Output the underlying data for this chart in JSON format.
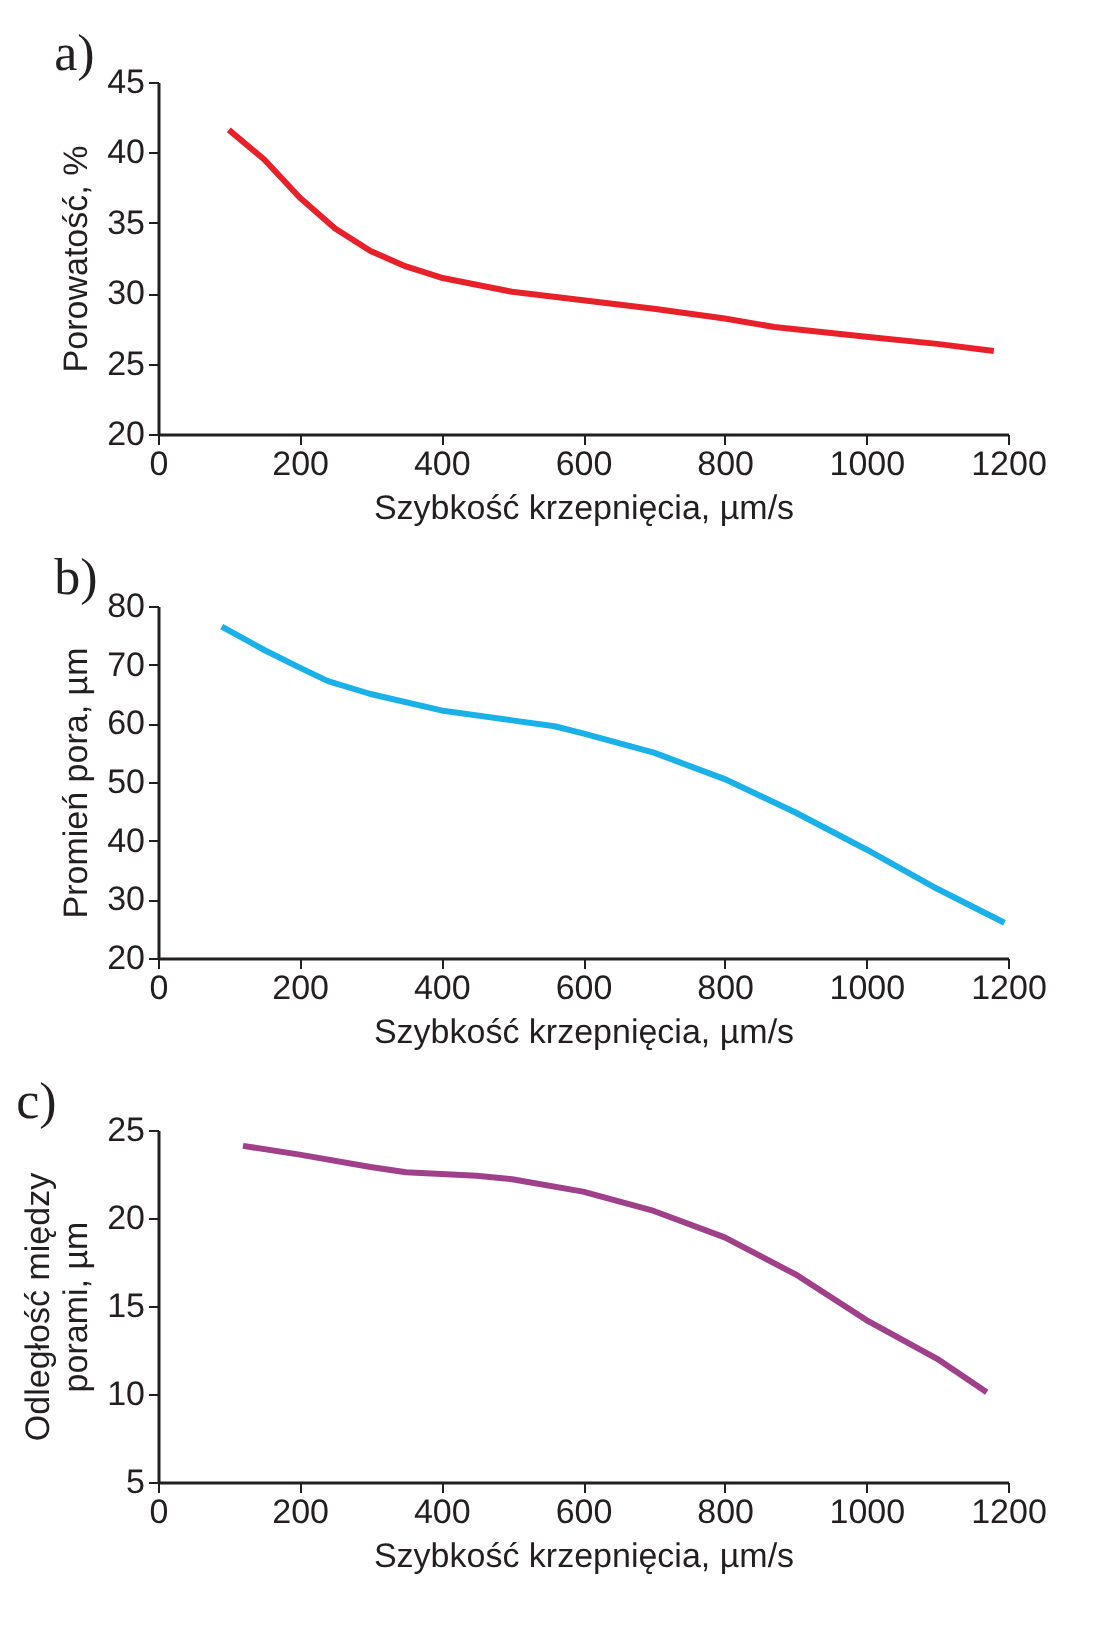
{
  "chart_data": [
    {
      "type": "line",
      "title": "a)",
      "xlabel": "Szybkość krzepnięcia, µm/s",
      "ylabel": "Porowatość, %",
      "xlim": [
        0,
        1200
      ],
      "xticks": [
        0,
        200,
        400,
        600,
        800,
        1000,
        1200
      ],
      "ylim": [
        20,
        45
      ],
      "yticks": [
        20,
        25,
        30,
        35,
        40,
        45
      ],
      "grid": false,
      "series": [
        {
          "color": "#e8202a",
          "x": [
            100,
            150,
            200,
            250,
            300,
            350,
            400,
            500,
            600,
            700,
            800,
            870,
            1000,
            1100,
            1180
          ],
          "values": [
            41.6,
            39.5,
            36.8,
            34.6,
            33.0,
            31.9,
            31.1,
            30.1,
            29.5,
            28.9,
            28.2,
            27.6,
            26.9,
            26.4,
            25.9
          ]
        }
      ]
    },
    {
      "type": "line",
      "title": "b)",
      "xlabel": "Szybkość krzepnięcia, µm/s",
      "ylabel": "Promień pora, µm",
      "xlim": [
        0,
        1200
      ],
      "xticks": [
        0,
        200,
        400,
        600,
        800,
        1000,
        1200
      ],
      "ylim": [
        20,
        80
      ],
      "yticks": [
        20,
        30,
        40,
        50,
        60,
        70,
        80
      ],
      "grid": false,
      "series": [
        {
          "color": "#1ab1e8",
          "x": [
            90,
            150,
            200,
            240,
            300,
            400,
            500,
            560,
            600,
            700,
            800,
            900,
            1000,
            1100,
            1195
          ],
          "values": [
            76.5,
            72.5,
            69.5,
            67.2,
            65,
            62.2,
            60.5,
            59.5,
            58.3,
            55,
            50.5,
            44.8,
            38.5,
            31.8,
            26
          ]
        }
      ]
    },
    {
      "type": "line",
      "title": "c)",
      "xlabel": "Szybkość krzepnięcia, µm/s",
      "ylabel": "Odległość między\nporami, µm",
      "xlim": [
        0,
        1200
      ],
      "xticks": [
        0,
        200,
        400,
        600,
        800,
        1000,
        1200
      ],
      "ylim": [
        5,
        25
      ],
      "yticks": [
        5,
        10,
        15,
        20,
        25
      ],
      "grid": false,
      "series": [
        {
          "color": "#a0408a",
          "x": [
            120,
            200,
            300,
            350,
            450,
            500,
            600,
            700,
            800,
            900,
            1000,
            1100,
            1170
          ],
          "values": [
            24.1,
            23.6,
            22.9,
            22.6,
            22.4,
            22.2,
            21.5,
            20.4,
            18.9,
            16.8,
            14.2,
            12.0,
            10.1
          ]
        }
      ]
    }
  ]
}
